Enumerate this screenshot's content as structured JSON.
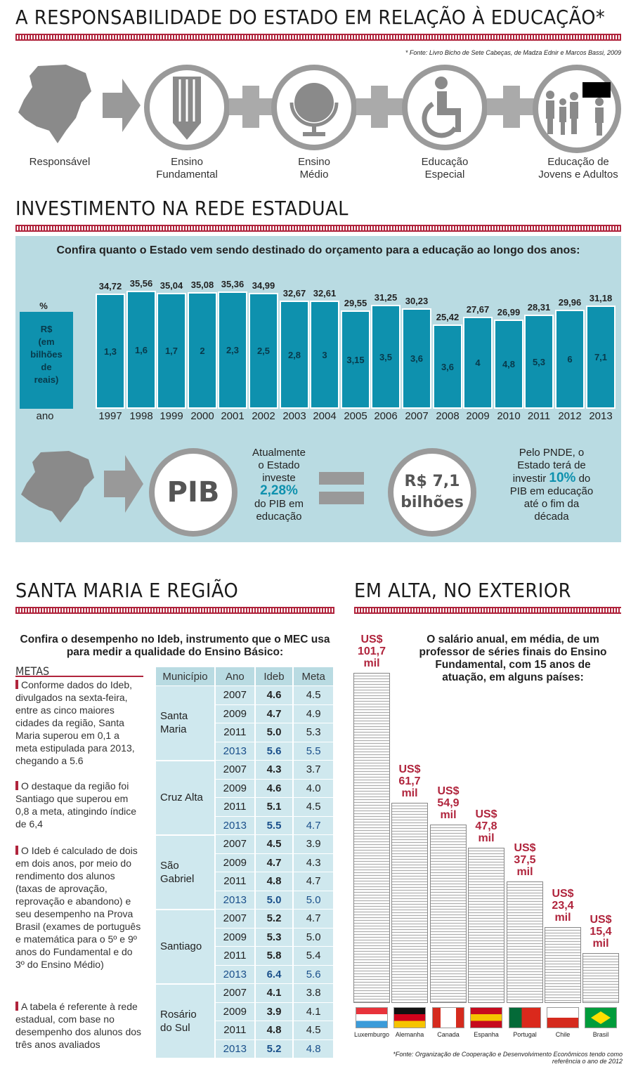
{
  "section1": {
    "title": "A RESPONSABILIDADE DO ESTADO EM RELAÇÃO À EDUCAÇÃO*",
    "source": "* Fonte: Livro Bicho de Sete Cabeças, de Madza Ednir e Marcos Bassi, 2009",
    "items": [
      {
        "label": "Responsável",
        "icon": "state-map-icon"
      },
      {
        "label": "Ensino\nFundamental",
        "icon": "pencil-icon"
      },
      {
        "label": "Ensino\nMédio",
        "icon": "globe-icon"
      },
      {
        "label": "Educação\nEspecial",
        "icon": "wheelchair-icon"
      },
      {
        "label": "Educação de\nJovens e Adultos",
        "icon": "people-icon"
      }
    ]
  },
  "section2": {
    "title": "INVESTIMENTO NA REDE ESTADUAL",
    "subtitle": "Confira quanto o Estado vem sendo destinado do orçamento para a educação ao longo dos anos:",
    "legend_pct": "%",
    "legend_rs": "R$\n(em\nbilhões\nde\nreais)",
    "legend_ano": "ano",
    "pib_label": "PIB",
    "pib_text_1": "Atualmente\no Estado\ninveste",
    "pib_pct": "2,28%",
    "pib_text_2": "do PIB em\neducação",
    "value_circle": "R$ 7,1\nbilhões",
    "pnde_text_1": "Pelo PNDE, o\nEstado terá de\ninvestir",
    "pnde_pct": "10%",
    "pnde_text_2": " do\nPIB em educação\naté o fim da\ndécada"
  },
  "chart_data": {
    "type": "bar",
    "categories": [
      "1997",
      "1998",
      "1999",
      "2000",
      "2001",
      "2002",
      "2003",
      "2004",
      "2005",
      "2006",
      "2007",
      "2008",
      "2009",
      "2010",
      "2011",
      "2012",
      "2013"
    ],
    "series": [
      {
        "name": "%",
        "values": [
          "34,72",
          "35,56",
          "35,04",
          "35,08",
          "35,36",
          "34,99",
          "32,67",
          "32,61",
          "29,55",
          "31,25",
          "30,23",
          "25,42",
          "27,67",
          "26,99",
          "28,31",
          "29,96",
          "31,18"
        ]
      },
      {
        "name": "R$ (em bilhões de reais)",
        "values": [
          "1,3",
          "1,6",
          "1,7",
          "2",
          "2,3",
          "2,5",
          "2,8",
          "3",
          "3,15",
          "3,5",
          "3,6",
          "3,6",
          "4",
          "4,8",
          "5,3",
          "6",
          "7,1"
        ]
      }
    ],
    "pct_numeric": [
      34.72,
      35.56,
      35.04,
      35.08,
      35.36,
      34.99,
      32.67,
      32.61,
      29.55,
      31.25,
      30.23,
      25.42,
      27.67,
      26.99,
      28.31,
      29.96,
      31.18
    ]
  },
  "section3": {
    "title": "SANTA MARIA E REGIÃO",
    "subtitle": "Confira o desempenho no Ideb, instrumento que o MEC usa para medir a qualidade do Ensino Básico:",
    "metas_title": "METAS",
    "metas": [
      "Conforme dados do Ideb, divulgados na sexta-feira, entre as cinco maiores cidades da região, Santa Maria superou em 0,1 a meta estipulada para 2013, chegando a 5.6",
      "O destaque da região foi Santiago que superou em 0,8 a meta, atingindo índice de 6,4",
      "O Ideb é calculado de dois em dois anos, por meio do rendimento dos alunos (taxas de aprovação, reprovação e abandono) e seu desempenho na Prova Brasil (exames de português e matemática para o 5º e 9º anos do Fundamental e do 3º do Ensino Médio)",
      "A tabela é referente à rede estadual, com base no desempenho dos alunos dos três anos avaliados"
    ],
    "table_headers": [
      "Município",
      "Ano",
      "Ideb",
      "Meta"
    ],
    "table": [
      {
        "municipio": "Santa\nMaria",
        "rows": [
          [
            "2007",
            "4.6",
            "4.5"
          ],
          [
            "2009",
            "4.7",
            "4.9"
          ],
          [
            "2011",
            "5.0",
            "5.3"
          ],
          [
            "2013",
            "5.6",
            "5.5"
          ]
        ]
      },
      {
        "municipio": "Cruz Alta",
        "rows": [
          [
            "2007",
            "4.3",
            "3.7"
          ],
          [
            "2009",
            "4.6",
            "4.0"
          ],
          [
            "2011",
            "5.1",
            "4.5"
          ],
          [
            "2013",
            "5.5",
            "4.7"
          ]
        ]
      },
      {
        "municipio": "São\nGabriel",
        "rows": [
          [
            "2007",
            "4.5",
            "3.9"
          ],
          [
            "2009",
            "4.7",
            "4.3"
          ],
          [
            "2011",
            "4.8",
            "4.7"
          ],
          [
            "2013",
            "5.0",
            "5.0"
          ]
        ]
      },
      {
        "municipio": "Santiago",
        "rows": [
          [
            "2007",
            "5.2",
            "4.7"
          ],
          [
            "2009",
            "5.3",
            "5.0"
          ],
          [
            "2011",
            "5.8",
            "5.4"
          ],
          [
            "2013",
            "6.4",
            "5.6"
          ]
        ]
      },
      {
        "municipio": "Rosário\ndo Sul",
        "rows": [
          [
            "2007",
            "4.1",
            "3.8"
          ],
          [
            "2009",
            "3.9",
            "4.1"
          ],
          [
            "2011",
            "4.8",
            "4.5"
          ],
          [
            "2013",
            "5.2",
            "4.8"
          ]
        ]
      }
    ]
  },
  "section4": {
    "title": "EM ALTA, NO EXTERIOR",
    "subtitle": "O salário anual, em média, de um professor de séries finais do Ensino Fundamental, com 15 anos de atuação, em alguns países:",
    "source": "*Fonte: Organização de Cooperação e Desenvolvimento Econômicos tendo como referência o ano de 2012",
    "countries": [
      {
        "name": "Luxemburgo",
        "label": "US$\n101,7\nmil",
        "value": 101.7
      },
      {
        "name": "Alemanha",
        "label": "US$\n61,7\nmil",
        "value": 61.7
      },
      {
        "name": "Canada",
        "label": "US$\n54,9\nmil",
        "value": 54.9
      },
      {
        "name": "Espanha",
        "label": "US$\n47,8\nmil",
        "value": 47.8
      },
      {
        "name": "Portugal",
        "label": "US$\n37,5\nmil",
        "value": 37.5
      },
      {
        "name": "Chile",
        "label": "US$\n23,4\nmil",
        "value": 23.4
      },
      {
        "name": "Brasil",
        "label": "US$\n15,4\nmil",
        "value": 15.4
      }
    ]
  },
  "colors": {
    "accent": "#b0243c",
    "bar": "#0e91ae",
    "panel": "#b9dbe2",
    "highlight": "#0e91ae"
  }
}
